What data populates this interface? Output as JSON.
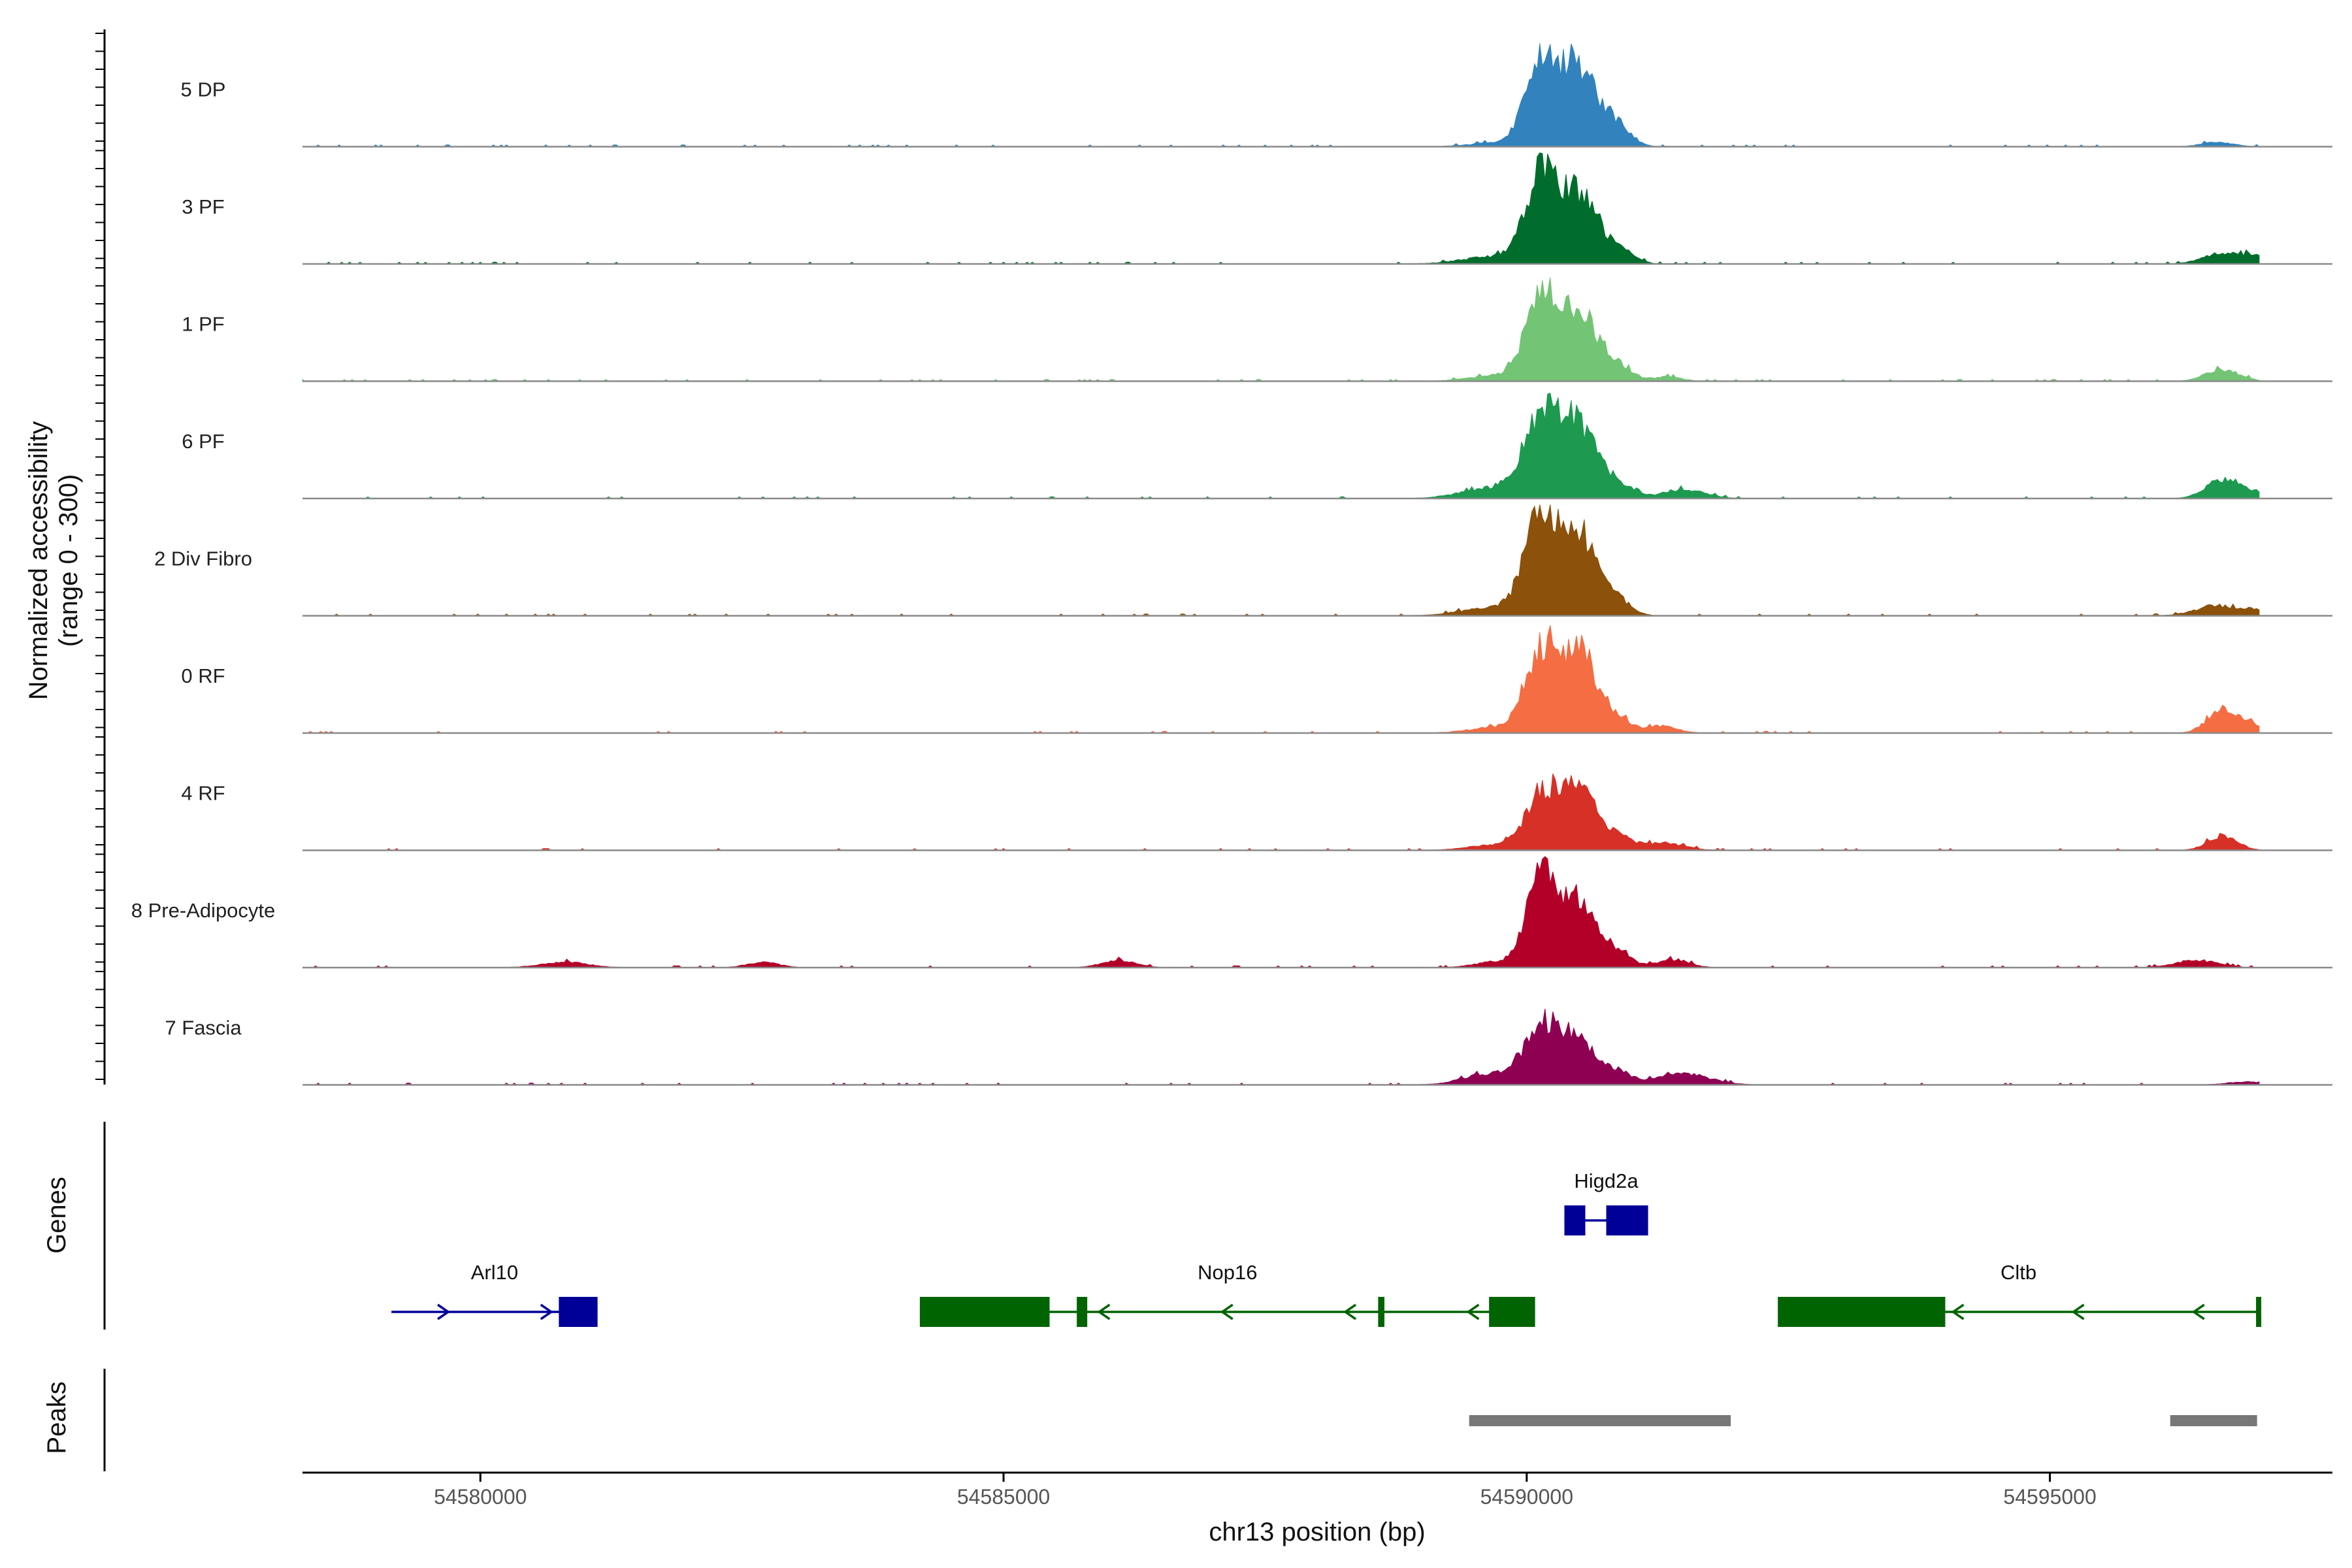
{
  "chart_data": {
    "type": "area",
    "title": "",
    "xlabel": "chr13 position (bp)",
    "ylabel_line1": "Normalized accessibility",
    "ylabel_line2": "(range 0 - 300)",
    "xlim": [
      54578300,
      54597700
    ],
    "x_ticks": [
      54580000,
      54585000,
      54590000,
      54595000
    ],
    "x_tick_labels": [
      "54580000",
      "54585000",
      "54590000",
      "54595000"
    ],
    "y_range": [
      0,
      300
    ],
    "data_start": 54578300,
    "data_end": 54597000,
    "series": [
      {
        "name": "5 DP",
        "color": "#3182bd",
        "peaks": [
          [
            54590160,
            250,
            160
          ],
          [
            54590520,
            200,
            150
          ],
          [
            54590860,
            60,
            130
          ],
          [
            54589700,
            10,
            250
          ],
          [
            54596600,
            12,
            150
          ]
        ]
      },
      {
        "name": "3 PF",
        "color": "#006d2c",
        "peaks": [
          [
            54590160,
            245,
            160
          ],
          [
            54590520,
            170,
            150
          ],
          [
            54590860,
            50,
            140
          ],
          [
            54589700,
            20,
            300
          ],
          [
            54596650,
            30,
            180
          ],
          [
            54596950,
            20,
            90
          ]
        ]
      },
      {
        "name": "1 PF",
        "color": "#74c476",
        "peaks": [
          [
            54590160,
            245,
            160
          ],
          [
            54590520,
            175,
            150
          ],
          [
            54590860,
            45,
            140
          ],
          [
            54589700,
            15,
            250
          ],
          [
            54591350,
            12,
            130
          ],
          [
            54596650,
            32,
            160
          ]
        ]
      },
      {
        "name": "6 PF",
        "color": "#1d9a4f",
        "peaks": [
          [
            54590160,
            235,
            170
          ],
          [
            54590520,
            180,
            150
          ],
          [
            54590860,
            45,
            140
          ],
          [
            54589700,
            30,
            300
          ],
          [
            54591500,
            25,
            200
          ],
          [
            54596650,
            50,
            160
          ],
          [
            54596950,
            15,
            100
          ]
        ]
      },
      {
        "name": "2 Div Fibro",
        "color": "#8c510a",
        "peaks": [
          [
            54590160,
            280,
            160
          ],
          [
            54590520,
            210,
            150
          ],
          [
            54590860,
            45,
            130
          ],
          [
            54589700,
            25,
            300
          ],
          [
            54596600,
            28,
            200
          ],
          [
            54596950,
            15,
            100
          ]
        ]
      },
      {
        "name": "0 RF",
        "color": "#f46d43",
        "peaks": [
          [
            54590160,
            230,
            160
          ],
          [
            54590520,
            200,
            150
          ],
          [
            54590860,
            40,
            140
          ],
          [
            54589700,
            15,
            250
          ],
          [
            54591300,
            20,
            140
          ],
          [
            54596650,
            65,
            140
          ],
          [
            54596950,
            20,
            120
          ]
        ]
      },
      {
        "name": "4 RF",
        "color": "#d73027",
        "peaks": [
          [
            54590160,
            160,
            160
          ],
          [
            54590520,
            155,
            150
          ],
          [
            54590860,
            35,
            140
          ],
          [
            54589700,
            15,
            250
          ],
          [
            54591300,
            20,
            200
          ],
          [
            54596650,
            40,
            140
          ]
        ]
      },
      {
        "name": "8 Pre-Adipocyte",
        "color": "#b30029",
        "peaks": [
          [
            54590160,
            280,
            150
          ],
          [
            54590520,
            170,
            140
          ],
          [
            54590860,
            50,
            130
          ],
          [
            54589700,
            15,
            200
          ],
          [
            54580800,
            15,
            220
          ],
          [
            54582700,
            15,
            150
          ],
          [
            54586100,
            20,
            160
          ],
          [
            54591400,
            22,
            150
          ],
          [
            54596400,
            20,
            200
          ]
        ]
      },
      {
        "name": "7 Fascia",
        "color": "#8e0152",
        "peaks": [
          [
            54590160,
            160,
            170
          ],
          [
            54590520,
            110,
            150
          ],
          [
            54590860,
            35,
            140
          ],
          [
            54589650,
            30,
            250
          ],
          [
            54591500,
            30,
            250
          ],
          [
            54596900,
            8,
            200
          ]
        ]
      }
    ],
    "genes_track_label": "Genes",
    "peaks_track_label": "Peaks",
    "genes": [
      {
        "name": "Arl10",
        "strand": "+",
        "color": "#000099",
        "start": 54579150,
        "end": 54581120,
        "row": 2,
        "exons": [
          [
            54580750,
            54581120
          ]
        ]
      },
      {
        "name": "Nop16",
        "strand": "-",
        "color": "#006400",
        "start": 54584200,
        "end": 54590080,
        "row": 2,
        "exons": [
          [
            54584200,
            54585440
          ],
          [
            54585700,
            54585800
          ],
          [
            54588580,
            54588640
          ],
          [
            54589640,
            54590080
          ]
        ]
      },
      {
        "name": "Higd2a",
        "strand": "",
        "color": "#000099",
        "start": 54590360,
        "end": 54591160,
        "row": 1,
        "exons": [
          [
            54590360,
            54590560
          ],
          [
            54590760,
            54591160
          ]
        ]
      },
      {
        "name": "Cltb",
        "strand": "-",
        "color": "#006400",
        "start": 54592400,
        "end": 54597000,
        "row": 2,
        "exons": [
          [
            54592400,
            54594000
          ],
          [
            54596970,
            54597020
          ]
        ]
      }
    ],
    "peak_regions": [
      [
        54589450,
        54591950
      ],
      [
        54596150,
        54596980
      ]
    ]
  }
}
